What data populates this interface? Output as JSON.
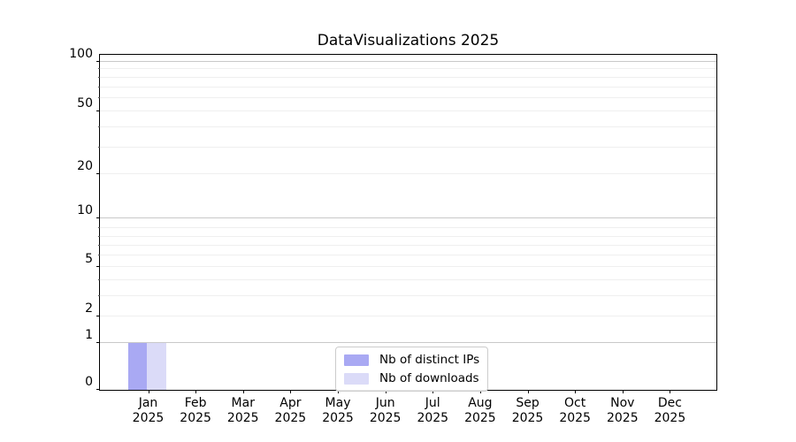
{
  "title": "DataVisualizations 2025",
  "chart_data": {
    "type": "bar",
    "title": "DataVisualizations 2025",
    "categories": [
      "Jan 2025",
      "Feb 2025",
      "Mar 2025",
      "Apr 2025",
      "May 2025",
      "Jun 2025",
      "Jul 2025",
      "Aug 2025",
      "Sep 2025",
      "Oct 2025",
      "Nov 2025",
      "Dec 2025"
    ],
    "x_tick_labels": [
      {
        "month": "Jan",
        "year": "2025"
      },
      {
        "month": "Feb",
        "year": "2025"
      },
      {
        "month": "Mar",
        "year": "2025"
      },
      {
        "month": "Apr",
        "year": "2025"
      },
      {
        "month": "May",
        "year": "2025"
      },
      {
        "month": "Jun",
        "year": "2025"
      },
      {
        "month": "Jul",
        "year": "2025"
      },
      {
        "month": "Aug",
        "year": "2025"
      },
      {
        "month": "Sep",
        "year": "2025"
      },
      {
        "month": "Oct",
        "year": "2025"
      },
      {
        "month": "Nov",
        "year": "2025"
      },
      {
        "month": "Dec",
        "year": "2025"
      }
    ],
    "series": [
      {
        "name": "Nb of distinct IPs",
        "color": "#a9a9f3",
        "values": [
          1,
          0,
          0,
          0,
          0,
          0,
          0,
          0,
          0,
          0,
          0,
          0
        ]
      },
      {
        "name": "Nb of downloads",
        "color": "#dbdbf8",
        "values": [
          1,
          0,
          0,
          0,
          0,
          0,
          0,
          0,
          0,
          0,
          0,
          0
        ]
      }
    ],
    "y_axis": {
      "scale": "symlog",
      "labeled_ticks": [
        0,
        1,
        2,
        5,
        10,
        20,
        50,
        100
      ],
      "minor_ticks": [
        3,
        4,
        6,
        7,
        8,
        9,
        30,
        40,
        60,
        70,
        80,
        90
      ],
      "major_gridline_values": [
        1,
        10,
        100
      ],
      "ylim": [
        0,
        107
      ]
    },
    "grid": "horizontal",
    "legend_position": "inside-bottom-center",
    "colors": {
      "major_grid": "#c9c9c9",
      "minor_grid": "#efefef",
      "spine": "#000000",
      "bar_series_1": "#a9a9f3",
      "bar_series_2": "#dbdbf8"
    }
  }
}
